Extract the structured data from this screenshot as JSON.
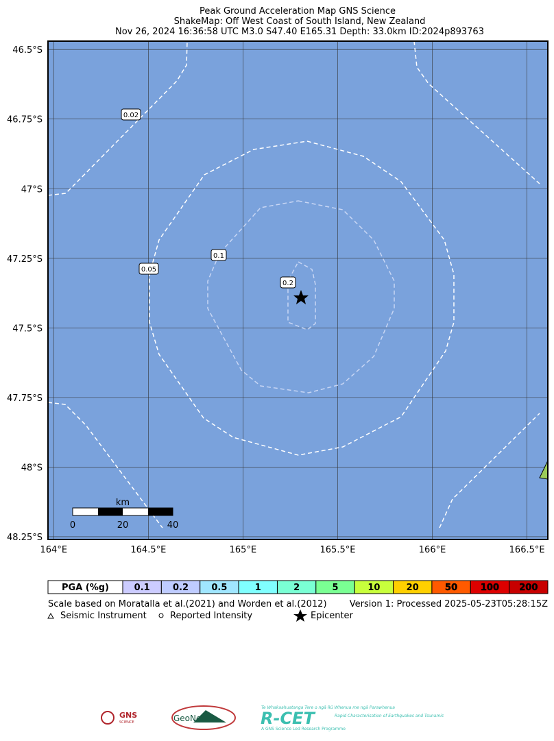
{
  "header": {
    "title": "Peak Ground Acceleration Map GNS Science",
    "subtitle": "ShakeMap: Off West Coast of South Island, New Zealand",
    "event": "Nov 26, 2024 16:36:58 UTC M3.0 S47.40 E165.31 Depth: 33.0km ID:2024p893763"
  },
  "map": {
    "xlim": [
      163.97,
      166.61
    ],
    "ylim": [
      -46.47,
      -48.26
    ],
    "xticks": [
      {
        "value": 164,
        "label": "164°E"
      },
      {
        "value": 164.5,
        "label": "164.5°E"
      },
      {
        "value": 165,
        "label": "165°E"
      },
      {
        "value": 165.5,
        "label": "165.5°E"
      },
      {
        "value": 166,
        "label": "166°E"
      },
      {
        "value": 166.5,
        "label": "166.5°E"
      }
    ],
    "yticks": [
      {
        "value": -46.5,
        "label": "46.5°S"
      },
      {
        "value": -46.75,
        "label": "46.75°S"
      },
      {
        "value": -47,
        "label": "47°S"
      },
      {
        "value": -47.25,
        "label": "47.25°S"
      },
      {
        "value": -47.5,
        "label": "47.5°S"
      },
      {
        "value": -47.75,
        "label": "47.75°S"
      },
      {
        "value": -48,
        "label": "48°S"
      },
      {
        "value": -48.25,
        "label": "48.25°S"
      }
    ],
    "contour_labels": [
      "0.02",
      "0.05",
      "0.1",
      "0.2"
    ],
    "scale_bar": {
      "unit": "km",
      "labels": [
        "0",
        "20",
        "40"
      ]
    }
  },
  "legend": {
    "header": "PGA (%g)",
    "levels": [
      {
        "label": "0.1",
        "color": "#ccccff"
      },
      {
        "label": "0.2",
        "color": "#bfccff"
      },
      {
        "label": "0.5",
        "color": "#a0e6ff"
      },
      {
        "label": "1",
        "color": "#80ffff"
      },
      {
        "label": "2",
        "color": "#7affd4"
      },
      {
        "label": "5",
        "color": "#7aff93"
      },
      {
        "label": "10",
        "color": "#c8ff3c"
      },
      {
        "label": "20",
        "color": "#ffd000"
      },
      {
        "label": "50",
        "color": "#ff5a00"
      },
      {
        "label": "100",
        "color": "#dd0000"
      },
      {
        "label": "200",
        "color": "#c80000"
      }
    ]
  },
  "notes": {
    "scale": "Scale based on Moratalla et al.(2021) and Worden et al.(2012)",
    "version": "Version 1: Processed 2025-05-23T05:28:15Z",
    "instrument": "Seismic Instrument",
    "intensity": "Reported Intensity",
    "epicenter": "Epicenter"
  },
  "logos": {
    "gns": "GNS",
    "gns_sub": "SCIENCE",
    "geonet": "GeoNet",
    "rcet": "R-CET",
    "rcet_sub": "Rapid Characterisation of Earthquakes and Tsunamis",
    "rcet_top": "Te Whakaahuatanga Tere o ngā Rū Whenua me ngā Parawhenua",
    "rcet_bottom": "A GNS Science Led Research Programme"
  }
}
